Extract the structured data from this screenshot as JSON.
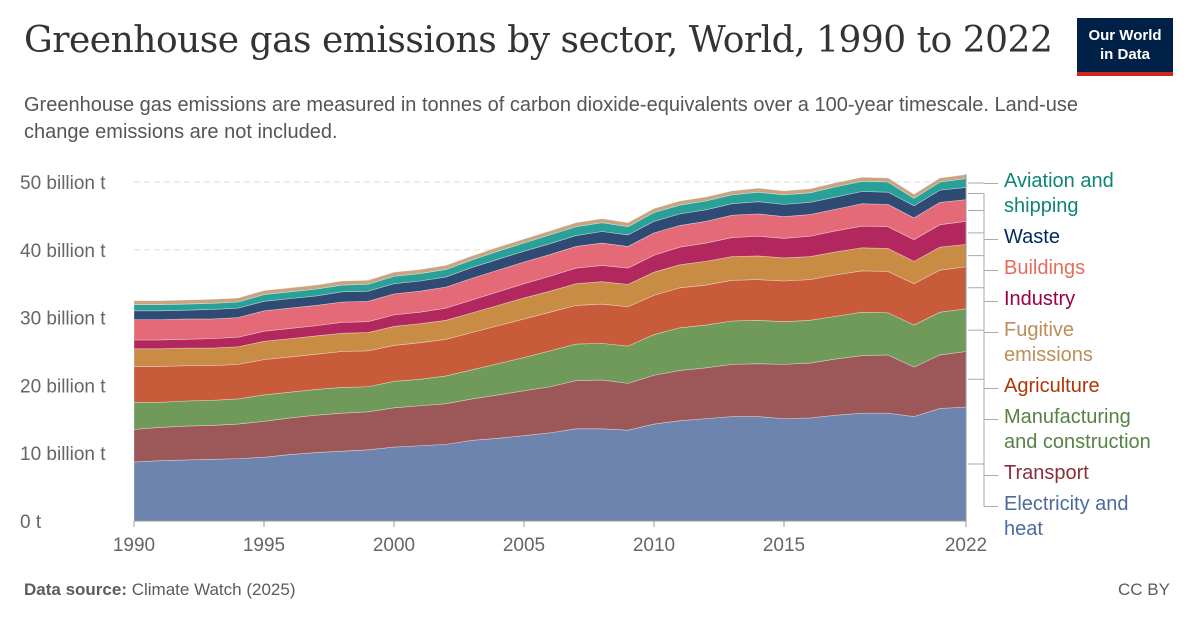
{
  "header": {
    "title": "Greenhouse gas emissions by sector, World, 1990 to 2022",
    "subtitle": "Greenhouse gas emissions are measured in tonnes of carbon dioxide-equivalents over a 100-year timescale. Land-use change emissions are not included.",
    "logo_line1": "Our World",
    "logo_line2": "in Data"
  },
  "footer": {
    "source_label": "Data source:",
    "source_value": "Climate Watch (2025)",
    "license": "CC BY"
  },
  "colors": {
    "logo_bg": "#002147",
    "logo_accent": "#ce261e"
  },
  "chart_data": {
    "type": "area",
    "stacked": true,
    "x": [
      1990,
      1991,
      1992,
      1993,
      1994,
      1995,
      1996,
      1997,
      1998,
      1999,
      2000,
      2001,
      2002,
      2003,
      2004,
      2005,
      2006,
      2007,
      2008,
      2009,
      2010,
      2011,
      2012,
      2013,
      2014,
      2015,
      2016,
      2017,
      2018,
      2019,
      2020,
      2021,
      2022
    ],
    "x_ticks": [
      1990,
      1995,
      2000,
      2005,
      2010,
      2015,
      2022
    ],
    "y_ticks": [
      {
        "value": 0,
        "label": "0 t"
      },
      {
        "value": 10,
        "label": "10 billion t"
      },
      {
        "value": 20,
        "label": "20 billion t"
      },
      {
        "value": 30,
        "label": "30 billion t"
      },
      {
        "value": 40,
        "label": "40 billion t"
      },
      {
        "value": 50,
        "label": "50 billion t"
      }
    ],
    "ylim": [
      0,
      50
    ],
    "grid": true,
    "legend_position": "right",
    "series": [
      {
        "name": "Electricity and heat",
        "color": "#6d84ae",
        "label_color": "#4c6a9c",
        "values": [
          8.7,
          8.9,
          9.0,
          9.1,
          9.2,
          9.4,
          9.8,
          10.1,
          10.3,
          10.5,
          10.9,
          11.1,
          11.3,
          11.9,
          12.2,
          12.6,
          13.0,
          13.6,
          13.6,
          13.4,
          14.3,
          14.8,
          15.1,
          15.4,
          15.4,
          15.1,
          15.2,
          15.6,
          15.9,
          15.9,
          15.4,
          16.6,
          16.8
        ]
      },
      {
        "name": "Transport",
        "color": "#9c5858",
        "label_color": "#883039",
        "values": [
          4.8,
          4.9,
          5.0,
          5.0,
          5.1,
          5.3,
          5.4,
          5.5,
          5.6,
          5.6,
          5.8,
          5.9,
          6.0,
          6.1,
          6.4,
          6.6,
          6.8,
          7.1,
          7.2,
          6.9,
          7.2,
          7.4,
          7.5,
          7.7,
          7.8,
          8.0,
          8.1,
          8.3,
          8.5,
          8.6,
          7.3,
          7.9,
          8.2
        ]
      },
      {
        "name": "Manufacturing and construction",
        "color": "#6f9a5a",
        "label_color": "#578145",
        "values": [
          4.0,
          3.7,
          3.7,
          3.7,
          3.7,
          3.9,
          3.8,
          3.8,
          3.8,
          3.7,
          3.9,
          3.9,
          4.1,
          4.3,
          4.6,
          4.9,
          5.3,
          5.4,
          5.4,
          5.5,
          6.0,
          6.3,
          6.3,
          6.4,
          6.4,
          6.3,
          6.3,
          6.3,
          6.4,
          6.2,
          6.2,
          6.3,
          6.3
        ]
      },
      {
        "name": "Agriculture",
        "color": "#c85b3a",
        "label_color": "#b13507",
        "values": [
          5.3,
          5.3,
          5.2,
          5.1,
          5.1,
          5.2,
          5.2,
          5.2,
          5.3,
          5.3,
          5.3,
          5.4,
          5.4,
          5.5,
          5.6,
          5.7,
          5.7,
          5.7,
          5.8,
          5.8,
          5.8,
          5.9,
          5.9,
          6.0,
          6.0,
          6.0,
          6.0,
          6.1,
          6.1,
          6.1,
          6.1,
          6.2,
          6.2
        ]
      },
      {
        "name": "Fugitive emissions",
        "color": "#c98c45",
        "label_color": "#bc8e5a",
        "values": [
          2.6,
          2.6,
          2.6,
          2.6,
          2.6,
          2.7,
          2.7,
          2.7,
          2.7,
          2.7,
          2.8,
          2.8,
          2.8,
          2.9,
          3.0,
          3.1,
          3.1,
          3.2,
          3.3,
          3.3,
          3.4,
          3.4,
          3.5,
          3.5,
          3.5,
          3.4,
          3.4,
          3.4,
          3.4,
          3.4,
          3.3,
          3.4,
          3.3
        ]
      },
      {
        "name": "Industry",
        "color": "#b2285e",
        "label_color": "#970046",
        "values": [
          1.3,
          1.3,
          1.3,
          1.4,
          1.4,
          1.5,
          1.5,
          1.5,
          1.6,
          1.6,
          1.7,
          1.7,
          1.8,
          1.9,
          2.0,
          2.1,
          2.2,
          2.3,
          2.4,
          2.4,
          2.5,
          2.6,
          2.7,
          2.8,
          2.9,
          2.9,
          3.0,
          3.1,
          3.2,
          3.2,
          3.2,
          3.3,
          3.4
        ]
      },
      {
        "name": "Buildings",
        "color": "#e56a78",
        "label_color": "#e56e5a",
        "values": [
          3.0,
          3.0,
          3.0,
          2.9,
          2.9,
          3.0,
          3.0,
          3.0,
          3.0,
          3.0,
          3.1,
          3.1,
          3.1,
          3.2,
          3.2,
          3.2,
          3.2,
          3.2,
          3.3,
          3.2,
          3.3,
          3.2,
          3.2,
          3.3,
          3.3,
          3.2,
          3.2,
          3.2,
          3.3,
          3.3,
          3.2,
          3.3,
          3.2
        ]
      },
      {
        "name": "Waste",
        "color": "#2f4a73",
        "label_color": "#00295b",
        "values": [
          1.3,
          1.3,
          1.3,
          1.4,
          1.4,
          1.4,
          1.4,
          1.4,
          1.5,
          1.5,
          1.5,
          1.5,
          1.5,
          1.6,
          1.6,
          1.6,
          1.6,
          1.6,
          1.7,
          1.7,
          1.7,
          1.7,
          1.7,
          1.7,
          1.8,
          1.8,
          1.8,
          1.8,
          1.8,
          1.8,
          1.8,
          1.8,
          1.8
        ]
      },
      {
        "name": "Aviation and shipping",
        "color": "#2aa198",
        "label_color": "#0e8476",
        "values": [
          0.9,
          0.9,
          0.9,
          0.9,
          0.9,
          1.0,
          1.0,
          1.0,
          1.0,
          1.0,
          1.1,
          1.1,
          1.1,
          1.1,
          1.2,
          1.2,
          1.3,
          1.3,
          1.3,
          1.2,
          1.3,
          1.3,
          1.3,
          1.3,
          1.4,
          1.4,
          1.4,
          1.5,
          1.5,
          1.5,
          1.1,
          1.2,
          1.3
        ]
      },
      {
        "name": "",
        "color": "#c8a482",
        "label_color": "#c8a482",
        "values": [
          0.6,
          0.6,
          0.6,
          0.6,
          0.6,
          0.6,
          0.6,
          0.6,
          0.6,
          0.6,
          0.6,
          0.6,
          0.6,
          0.6,
          0.6,
          0.6,
          0.6,
          0.6,
          0.6,
          0.6,
          0.6,
          0.6,
          0.6,
          0.6,
          0.6,
          0.6,
          0.6,
          0.6,
          0.6,
          0.6,
          0.6,
          0.6,
          0.6
        ]
      }
    ],
    "legend_labels": [
      {
        "series": "Aviation and shipping",
        "lines": [
          "Aviation and",
          "shipping"
        ]
      },
      {
        "series": "Waste",
        "lines": [
          "Waste"
        ]
      },
      {
        "series": "Buildings",
        "lines": [
          "Buildings"
        ]
      },
      {
        "series": "Industry",
        "lines": [
          "Industry"
        ]
      },
      {
        "series": "Fugitive emissions",
        "lines": [
          "Fugitive",
          "emissions"
        ]
      },
      {
        "series": "Agriculture",
        "lines": [
          "Agriculture"
        ]
      },
      {
        "series": "Manufacturing and construction",
        "lines": [
          "Manufacturing",
          "and construction"
        ]
      },
      {
        "series": "Transport",
        "lines": [
          "Transport"
        ]
      },
      {
        "series": "Electricity and heat",
        "lines": [
          "Electricity and",
          "heat"
        ]
      }
    ]
  }
}
